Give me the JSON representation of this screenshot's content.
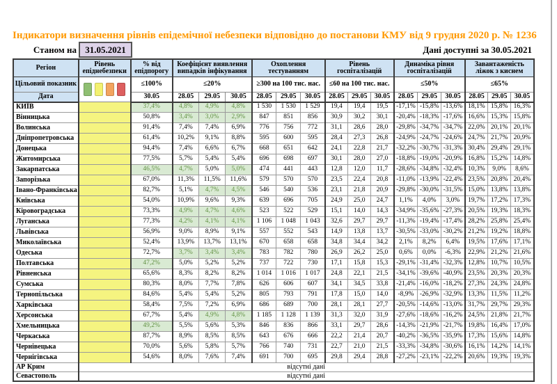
{
  "title": "Індикатори визначення рівнів епідемічної небезпеки відповідно до постанови КМУ від 9 грудня 2020 р. № 1236",
  "as_of": {
    "label": "Станом на",
    "date": "31.05.2021"
  },
  "available_label": "Дані доступні за 30.05.2021",
  "no_data_text": "відсутні дані",
  "colors": {
    "title": "#ff9900",
    "header_bg": "#cfe2f3",
    "level_yellow": "#f5f480",
    "green_cell_bg": "#d9ead3",
    "green_cell_text": "#629144",
    "date_box_bg": "#ddd2e8"
  },
  "legend_colors": [
    "#8fbf72",
    "#f3f170",
    "#f3a45f",
    "#dd5f5f"
  ],
  "columns": {
    "region_label": "Регіон",
    "target_row_label": "Цільовий показник",
    "date_row_label": "Дата",
    "groups": [
      {
        "label": "Рівень епіднебезпеки",
        "target": "",
        "dates": []
      },
      {
        "label": "% від епідпорогу",
        "target": "≤100%",
        "dates": [
          "30.05"
        ]
      },
      {
        "label": "Коефіцієнт виявлення випадків інфікування",
        "target": "≤20%",
        "dates": [
          "28.05",
          "29.05",
          "30.05"
        ]
      },
      {
        "label": "Охоплення тестуванням",
        "target": "≥300 на 100 тис. нас.",
        "dates": [
          "28.05",
          "29.05",
          "30.05"
        ]
      },
      {
        "label": "Рівень госпіталізацій",
        "target": "≤60 на 100 тис. нас.",
        "dates": [
          "28.05",
          "29.05",
          "30.05"
        ]
      },
      {
        "label": "Динаміка рівня госпіталізацій",
        "target": "≤50%",
        "dates": [
          "28.05",
          "29.05",
          "30.05"
        ]
      },
      {
        "label": "Завантаженість ліжок з киснем",
        "target": "≤65%",
        "dates": [
          "28.05",
          "29.05",
          "30.05"
        ]
      }
    ]
  },
  "rows": [
    {
      "region": "КИЇВ",
      "values": [
        "37,4%",
        "4,8%",
        "4,9%",
        "4,8%",
        "1 530",
        "1 530",
        "1 529",
        "19,4",
        "19,4",
        "19,5",
        "-17,1%",
        "-15,8%",
        "-13,6%",
        "18,1%",
        "15,8%",
        "16,3%"
      ],
      "green": [
        0,
        1,
        2,
        3
      ]
    },
    {
      "region": "Вінницька",
      "values": [
        "50,8%",
        "3,4%",
        "3,0%",
        "2,9%",
        "847",
        "851",
        "856",
        "30,9",
        "30,2",
        "30,1",
        "-20,4%",
        "-18,3%",
        "-17,6%",
        "16,6%",
        "15,3%",
        "15,8%"
      ],
      "green": [
        1,
        2,
        3
      ]
    },
    {
      "region": "Волинська",
      "values": [
        "91,4%",
        "7,4%",
        "7,4%",
        "6,9%",
        "776",
        "756",
        "772",
        "31,1",
        "28,6",
        "28,0",
        "-29,8%",
        "-34,7%",
        "-34,7%",
        "22,0%",
        "20,1%",
        "20,1%"
      ],
      "green": []
    },
    {
      "region": "Дніпропетровська",
      "values": [
        "61,4%",
        "10,2%",
        "9,1%",
        "8,8%",
        "595",
        "600",
        "595",
        "28,4",
        "27,3",
        "26,8",
        "-24,9%",
        "-24,7%",
        "-24,6%",
        "24,7%",
        "21,7%",
        "20,9%"
      ],
      "green": []
    },
    {
      "region": "Донецька",
      "values": [
        "94,4%",
        "7,4%",
        "6,6%",
        "6,7%",
        "668",
        "651",
        "642",
        "24,1",
        "22,8",
        "21,7",
        "-32,2%",
        "-30,7%",
        "-31,3%",
        "30,4%",
        "29,4%",
        "29,1%"
      ],
      "green": []
    },
    {
      "region": "Житомирська",
      "values": [
        "77,5%",
        "5,7%",
        "5,4%",
        "5,4%",
        "696",
        "698",
        "697",
        "30,1",
        "28,0",
        "27,0",
        "-18,8%",
        "-19,0%",
        "-20,9%",
        "16,8%",
        "15,2%",
        "14,8%"
      ],
      "green": []
    },
    {
      "region": "Закарпатська",
      "values": [
        "46,5%",
        "4,7%",
        "5,0%",
        "5,0%",
        "474",
        "441",
        "443",
        "12,8",
        "12,0",
        "11,7",
        "-28,6%",
        "-34,8%",
        "-32,4%",
        "10,3%",
        "9,0%",
        "8,6%"
      ],
      "green": [
        0,
        1,
        3
      ]
    },
    {
      "region": "Запорізька",
      "values": [
        "67,0%",
        "11,3%",
        "11,5%",
        "11,6%",
        "579",
        "570",
        "570",
        "23,5",
        "22,4",
        "20,8",
        "-11,0%",
        "-13,9%",
        "-22,4%",
        "23,5%",
        "20,8%",
        "20,4%"
      ],
      "green": []
    },
    {
      "region": "Івано-Франківська",
      "values": [
        "82,7%",
        "5,1%",
        "4,7%",
        "4,5%",
        "546",
        "540",
        "536",
        "23,1",
        "21,8",
        "20,9",
        "-29,8%",
        "-30,0%",
        "-31,5%",
        "15,0%",
        "13,8%",
        "13,8%"
      ],
      "green": [
        2,
        3
      ]
    },
    {
      "region": "Київська",
      "values": [
        "54,0%",
        "10,9%",
        "9,6%",
        "9,3%",
        "639",
        "696",
        "705",
        "24,9",
        "25,0",
        "24,7",
        "1,1%",
        "4,0%",
        "3,0%",
        "19,7%",
        "17,2%",
        "17,3%"
      ],
      "green": []
    },
    {
      "region": "Кіровоградська",
      "values": [
        "73,3%",
        "4,9%",
        "4,7%",
        "4,6%",
        "523",
        "522",
        "529",
        "15,1",
        "14,0",
        "14,3",
        "-34,9%",
        "-35,6%",
        "-27,3%",
        "20,5%",
        "19,3%",
        "18,3%"
      ],
      "green": [
        1,
        2,
        3
      ]
    },
    {
      "region": "Луганська",
      "values": [
        "77,3%",
        "4,2%",
        "4,1%",
        "4,1%",
        "1 106",
        "1 048",
        "1 043",
        "32,6",
        "29,7",
        "29,7",
        "-11,3%",
        "-19,4%",
        "-17,4%",
        "28,2%",
        "25,8%",
        "25,4%"
      ],
      "green": [
        1,
        2,
        3
      ]
    },
    {
      "region": "Львівська",
      "values": [
        "56,9%",
        "9,0%",
        "8,9%",
        "9,1%",
        "557",
        "552",
        "543",
        "14,9",
        "13,8",
        "13,7",
        "-30,5%",
        "-33,0%",
        "-30,2%",
        "21,2%",
        "19,2%",
        "18,8%"
      ],
      "green": []
    },
    {
      "region": "Миколаївська",
      "values": [
        "52,4%",
        "13,9%",
        "13,7%",
        "13,1%",
        "670",
        "658",
        "658",
        "34,8",
        "34,4",
        "34,2",
        "2,1%",
        "8,2%",
        "6,4%",
        "19,5%",
        "17,6%",
        "17,1%"
      ],
      "green": []
    },
    {
      "region": "Одеська",
      "values": [
        "72,7%",
        "3,7%",
        "3,4%",
        "3,4%",
        "783",
        "782",
        "780",
        "26,9",
        "26,2",
        "25,0",
        "0,6%",
        "0,0%",
        "-6,3%",
        "22,9%",
        "21,2%",
        "21,6%"
      ],
      "green": [
        1,
        2,
        3
      ]
    },
    {
      "region": "Полтавська",
      "values": [
        "47,2%",
        "5,0%",
        "5,2%",
        "5,2%",
        "737",
        "722",
        "730",
        "17,1",
        "15,8",
        "15,3",
        "-29,1%",
        "-31,4%",
        "-32,3%",
        "12,8%",
        "10,7%",
        "10,5%"
      ],
      "green": [
        0
      ]
    },
    {
      "region": "Рівненська",
      "values": [
        "65,6%",
        "8,3%",
        "8,2%",
        "8,2%",
        "1 014",
        "1 016",
        "1 017",
        "24,8",
        "22,1",
        "21,5",
        "-34,1%",
        "-39,6%",
        "-40,9%",
        "23,5%",
        "20,3%",
        "20,3%"
      ],
      "green": []
    },
    {
      "region": "Сумська",
      "values": [
        "80,3%",
        "8,0%",
        "7,7%",
        "7,8%",
        "626",
        "606",
        "607",
        "34,1",
        "34,5",
        "33,8",
        "-21,4%",
        "-16,0%",
        "-18,2%",
        "27,3%",
        "24,3%",
        "24,8%"
      ],
      "green": []
    },
    {
      "region": "Тернопільська",
      "values": [
        "84,6%",
        "5,4%",
        "5,4%",
        "5,2%",
        "805",
        "793",
        "791",
        "17,8",
        "15,0",
        "14,0",
        "-8,9%",
        "-26,9%",
        "-32,9%",
        "13,3%",
        "11,5%",
        "11,2%"
      ],
      "green": []
    },
    {
      "region": "Харківська",
      "values": [
        "58,4%",
        "7,5%",
        "7,2%",
        "6,9%",
        "686",
        "689",
        "700",
        "28,1",
        "28,1",
        "27,7",
        "-20,5%",
        "-14,6%",
        "-13,0%",
        "31,7%",
        "29,7%",
        "29,3%"
      ],
      "green": []
    },
    {
      "region": "Херсонська",
      "values": [
        "67,7%",
        "5,4%",
        "4,9%",
        "4,8%",
        "1 185",
        "1 128",
        "1 139",
        "31,3",
        "32,0",
        "31,9",
        "-27,6%",
        "-18,6%",
        "-16,2%",
        "24,5%",
        "21,8%",
        "21,7%"
      ],
      "green": [
        2,
        3
      ]
    },
    {
      "region": "Хмельницька",
      "values": [
        "49,2%",
        "5,5%",
        "5,6%",
        "5,3%",
        "846",
        "836",
        "866",
        "33,1",
        "29,7",
        "28,6",
        "-14,3%",
        "-21,9%",
        "-21,7%",
        "19,8%",
        "16,4%",
        "17,0%"
      ],
      "green": [
        0
      ]
    },
    {
      "region": "Черкаська",
      "values": [
        "87,7%",
        "8,9%",
        "8,5%",
        "8,5%",
        "643",
        "676",
        "666",
        "22,2",
        "21,4",
        "20,7",
        "-40,2%",
        "-36,5%",
        "-35,9%",
        "17,3%",
        "15,6%",
        "14,8%"
      ],
      "green": []
    },
    {
      "region": "Чернівецька",
      "values": [
        "70,0%",
        "5,6%",
        "5,8%",
        "5,7%",
        "766",
        "740",
        "731",
        "22,7",
        "21,0",
        "21,5",
        "-33,3%",
        "-34,8%",
        "-30,6%",
        "16,1%",
        "14,2%",
        "14,1%"
      ],
      "green": []
    },
    {
      "region": "Чернігівська",
      "values": [
        "54,6%",
        "8,0%",
        "7,6%",
        "7,4%",
        "691",
        "700",
        "695",
        "29,8",
        "29,4",
        "28,8",
        "-27,2%",
        "-23,1%",
        "-22,2%",
        "20,6%",
        "19,3%",
        "19,3%"
      ],
      "green": []
    }
  ],
  "no_data_rows": [
    "АР Крим",
    "Севастополь"
  ]
}
